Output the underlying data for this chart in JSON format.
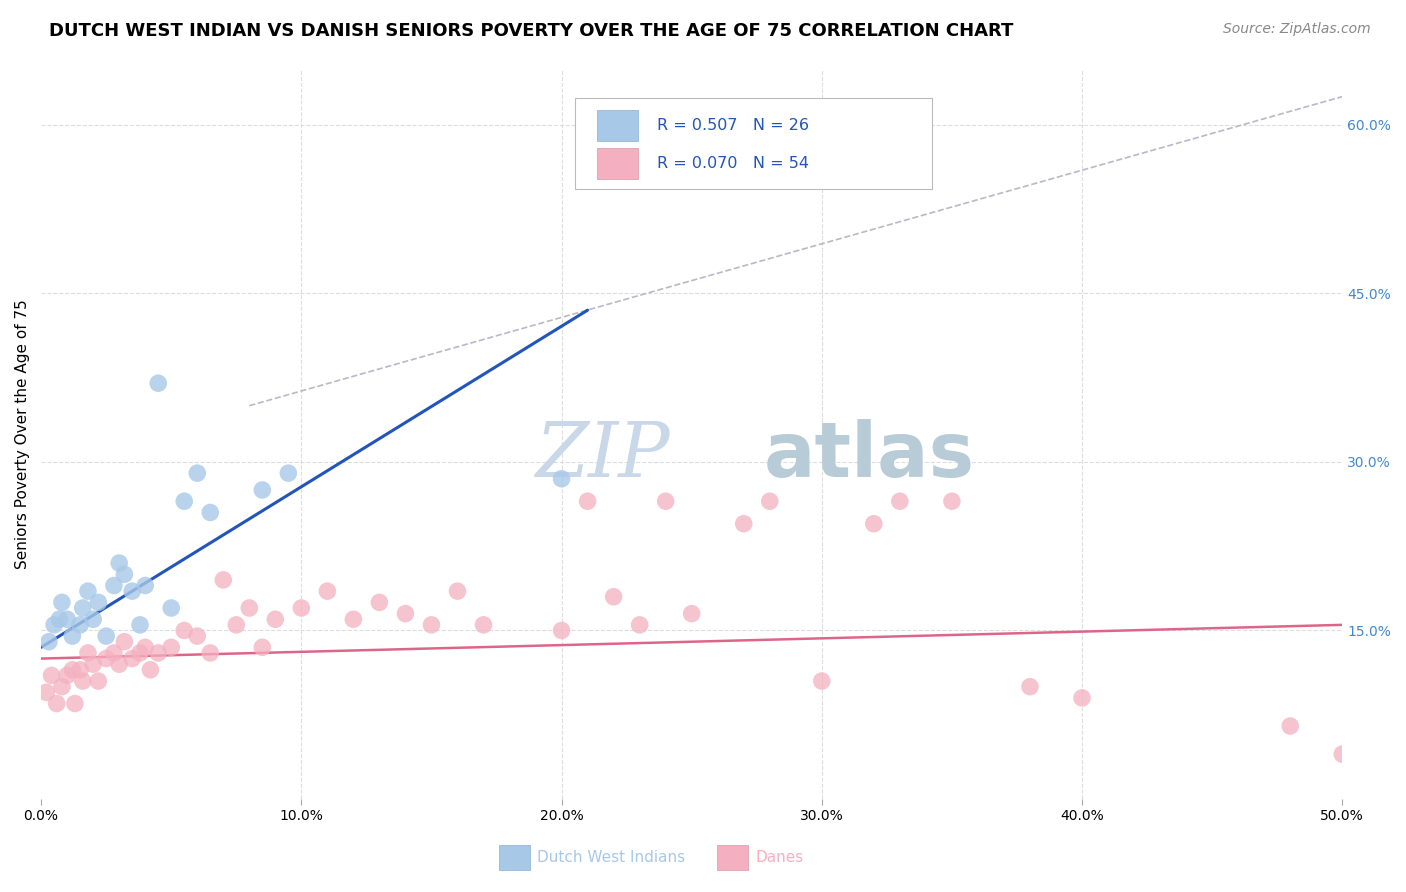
{
  "title": "DUTCH WEST INDIAN VS DANISH SENIORS POVERTY OVER THE AGE OF 75 CORRELATION CHART",
  "source": "Source: ZipAtlas.com",
  "ylabel": "Seniors Poverty Over the Age of 75",
  "xlim": [
    0.0,
    0.5
  ],
  "ylim": [
    0.0,
    0.65
  ],
  "xtick_vals": [
    0.0,
    0.1,
    0.2,
    0.3,
    0.4,
    0.5
  ],
  "xtick_labels": [
    "0.0%",
    "10.0%",
    "20.0%",
    "30.0%",
    "40.0%",
    "50.0%"
  ],
  "ytick_vals": [
    0.15,
    0.3,
    0.45,
    0.6
  ],
  "ytick_labels": [
    "15.0%",
    "30.0%",
    "45.0%",
    "60.0%"
  ],
  "blue_scatter_x": [
    0.003,
    0.005,
    0.007,
    0.008,
    0.01,
    0.012,
    0.015,
    0.016,
    0.018,
    0.02,
    0.022,
    0.025,
    0.028,
    0.03,
    0.032,
    0.035,
    0.038,
    0.04,
    0.045,
    0.05,
    0.055,
    0.06,
    0.065,
    0.085,
    0.095,
    0.2
  ],
  "blue_scatter_y": [
    0.14,
    0.155,
    0.16,
    0.175,
    0.16,
    0.145,
    0.155,
    0.17,
    0.185,
    0.16,
    0.175,
    0.145,
    0.19,
    0.21,
    0.2,
    0.185,
    0.155,
    0.19,
    0.37,
    0.17,
    0.265,
    0.29,
    0.255,
    0.275,
    0.29,
    0.285
  ],
  "pink_scatter_x": [
    0.002,
    0.004,
    0.006,
    0.008,
    0.01,
    0.012,
    0.013,
    0.015,
    0.016,
    0.018,
    0.02,
    0.022,
    0.025,
    0.028,
    0.03,
    0.032,
    0.035,
    0.038,
    0.04,
    0.042,
    0.045,
    0.05,
    0.055,
    0.06,
    0.065,
    0.07,
    0.075,
    0.08,
    0.085,
    0.09,
    0.1,
    0.11,
    0.12,
    0.13,
    0.14,
    0.15,
    0.16,
    0.17,
    0.2,
    0.21,
    0.22,
    0.23,
    0.24,
    0.25,
    0.27,
    0.28,
    0.3,
    0.32,
    0.33,
    0.35,
    0.38,
    0.4,
    0.48,
    0.5
  ],
  "pink_scatter_y": [
    0.095,
    0.11,
    0.085,
    0.1,
    0.11,
    0.115,
    0.085,
    0.115,
    0.105,
    0.13,
    0.12,
    0.105,
    0.125,
    0.13,
    0.12,
    0.14,
    0.125,
    0.13,
    0.135,
    0.115,
    0.13,
    0.135,
    0.15,
    0.145,
    0.13,
    0.195,
    0.155,
    0.17,
    0.135,
    0.16,
    0.17,
    0.185,
    0.16,
    0.175,
    0.165,
    0.155,
    0.185,
    0.155,
    0.15,
    0.265,
    0.18,
    0.155,
    0.265,
    0.165,
    0.245,
    0.265,
    0.105,
    0.245,
    0.265,
    0.265,
    0.1,
    0.09,
    0.065,
    0.04
  ],
  "blue_line_x": [
    0.0,
    0.21
  ],
  "blue_line_y": [
    0.135,
    0.435
  ],
  "pink_line_x": [
    0.0,
    0.5
  ],
  "pink_line_y": [
    0.125,
    0.155
  ],
  "dashed_line_x": [
    0.08,
    0.5
  ],
  "dashed_line_y": [
    0.35,
    0.625
  ],
  "background_color": "#ffffff",
  "grid_color": "#dddddd",
  "scatter_blue": "#a8c8e8",
  "scatter_pink": "#f4b0c0",
  "line_blue": "#2255bb",
  "line_pink": "#dd6688",
  "dashed_line_color": "#b8b8c8",
  "title_fontsize": 13,
  "label_fontsize": 11,
  "tick_fontsize": 10,
  "source_fontsize": 10,
  "right_tick_color": "#4488cc",
  "watermark_zip": "ZIP",
  "watermark_atlas": "atlas",
  "watermark_color_zip": "#c8d8e8",
  "watermark_color_atlas": "#b8ccd8",
  "watermark_fontsize": 55
}
